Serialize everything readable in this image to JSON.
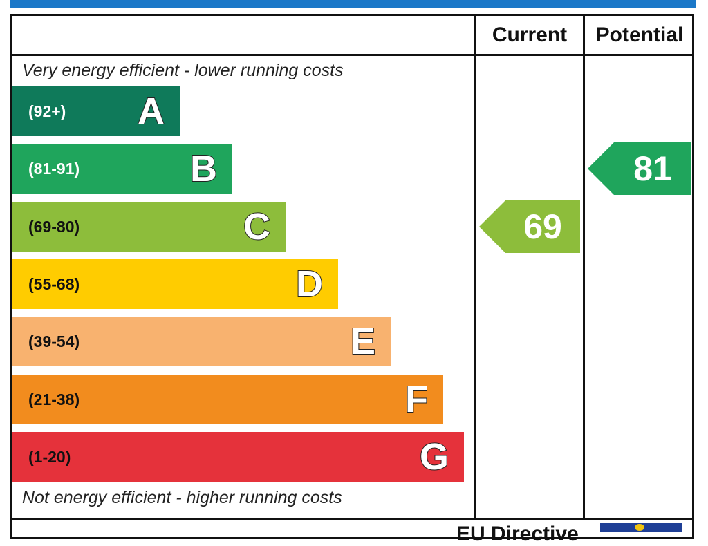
{
  "chart_data": {
    "type": "bar",
    "title": "",
    "columns": [
      "Current",
      "Potential"
    ],
    "captions": {
      "top": "Very energy efficient - lower running costs",
      "bottom": "Not energy efficient - higher running costs"
    },
    "bands": [
      {
        "letter": "A",
        "range": "(92+)",
        "color": "#0f7a5a",
        "range_color": "#ffffff",
        "length": 0.372
      },
      {
        "letter": "B",
        "range": "(81-91)",
        "color": "#1fa55c",
        "range_color": "#ffffff",
        "length": 0.488
      },
      {
        "letter": "C",
        "range": "(69-80)",
        "color": "#8dbd3b",
        "range_color": "#111111",
        "length": 0.605
      },
      {
        "letter": "D",
        "range": "(55-68)",
        "color": "#ffcc00",
        "range_color": "#111111",
        "length": 0.721
      },
      {
        "letter": "E",
        "range": "(39-54)",
        "color": "#f8b26f",
        "range_color": "#111111",
        "length": 0.838
      },
      {
        "letter": "F",
        "range": "(21-38)",
        "color": "#f28c1e",
        "range_color": "#111111",
        "length": 0.954
      },
      {
        "letter": "G",
        "range": "(1-20)",
        "color": "#e5323b",
        "range_color": "#111111",
        "length": 1.0
      }
    ],
    "current": {
      "value": "69",
      "band": "C",
      "color": "#8dbd3b"
    },
    "potential": {
      "value": "81",
      "band": "B",
      "color": "#1fa55c"
    }
  },
  "footer": {
    "brand_text": "EU Directive"
  }
}
